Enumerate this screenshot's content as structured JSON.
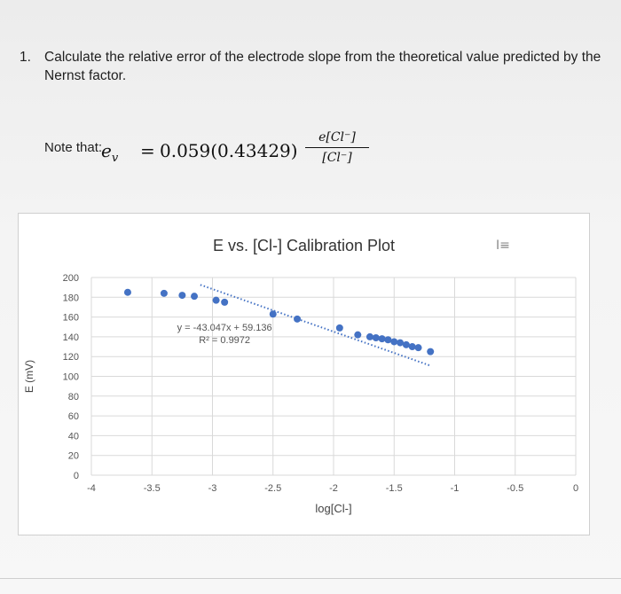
{
  "question": {
    "number": "1.",
    "text": "Calculate the relative error of the electrode slope from the theoretical value predicted by the Nernst factor."
  },
  "note": {
    "label": "Note that:",
    "lhs": "e",
    "lhs_sub": "v",
    "equals": "=",
    "coefficient": "0.059(0.43429)",
    "fraction_numerator": "e[Cl⁻]",
    "fraction_denominator": "[Cl⁻]"
  },
  "corner_icon": "text-cursor-icon",
  "chart_data": {
    "type": "scatter",
    "title": "E vs. [Cl-] Calibration Plot",
    "xlabel": "log[Cl-]",
    "ylabel": "E (mV)",
    "xlim": [
      -4,
      0
    ],
    "ylim": [
      0,
      200
    ],
    "x_ticks": [
      "-4",
      "-3.5",
      "-3",
      "-2.5",
      "-2",
      "-1.5",
      "-1",
      "-0.5",
      "0"
    ],
    "y_ticks": [
      "0",
      "20",
      "40",
      "60",
      "80",
      "100",
      "120",
      "140",
      "160",
      "180",
      "200"
    ],
    "grid": true,
    "series": [
      {
        "x": [
          -3.7,
          -3.4,
          -3.25,
          -3.15,
          -2.97,
          -2.9,
          -2.5,
          -2.3,
          -1.95,
          -1.8,
          -1.7,
          -1.65,
          -1.6,
          -1.55,
          -1.5,
          -1.45,
          -1.4,
          -1.35,
          -1.3,
          -1.2
        ],
        "y": [
          185,
          184,
          182,
          181,
          177,
          175,
          163,
          158,
          149,
          142,
          140,
          139,
          138,
          137,
          135,
          134,
          132,
          130,
          129,
          125
        ],
        "color": "#4472C4"
      }
    ],
    "trendline": {
      "equation": "y = -43.047x + 59.136",
      "r2": "R² = 0.9972",
      "x_range": [
        -3.1,
        -1.2
      ],
      "slope": -43.047,
      "intercept": 59.136,
      "style": "dotted",
      "color": "#4472C4"
    }
  }
}
